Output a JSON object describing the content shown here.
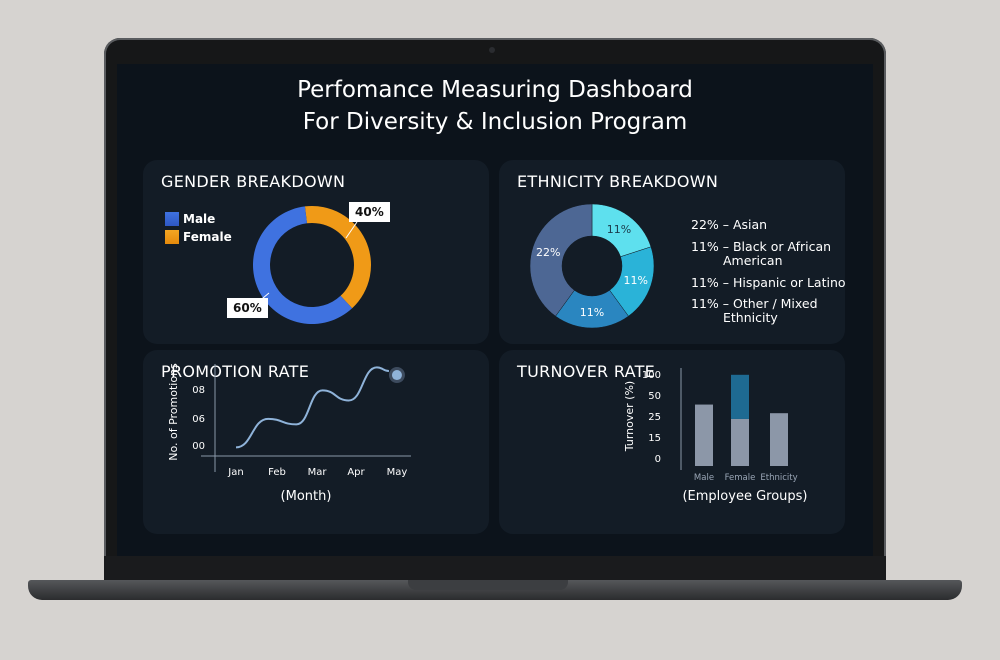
{
  "dashboard": {
    "title_line1": "Perfomance Measuring Dashboard",
    "title_line2": "For Diversity & Inclusion Program"
  },
  "chart_data": [
    {
      "id": "gender",
      "type": "pie",
      "variant": "donut",
      "title": "GENDER BREAKDOWN",
      "series": [
        {
          "name": "Male",
          "value": 60,
          "label": "60%",
          "color": "#3f72e0"
        },
        {
          "name": "Female",
          "value": 40,
          "label": "40%",
          "color": "#f09a17"
        }
      ],
      "legend_position": "left"
    },
    {
      "id": "ethnicity",
      "type": "pie",
      "variant": "donut",
      "title": "ETHNICITY BREAKDOWN",
      "series": [
        {
          "value": 11,
          "label": "11%",
          "color": "#5ee0ee"
        },
        {
          "value": 11,
          "label": "11%",
          "color": "#2ab3d8"
        },
        {
          "value": 11,
          "label": "11%",
          "color": "#2a86c0"
        },
        {
          "value": 22,
          "label": "22%",
          "color": "#4d6794"
        }
      ],
      "legend": [
        {
          "line1": "22% –  Asian",
          "line2": ""
        },
        {
          "line1": "11% –  Black or African",
          "line2": "American"
        },
        {
          "line1": "11% –  Hispanic or Latino",
          "line2": ""
        },
        {
          "line1": "11% –  Other / Mixed",
          "line2": "Ethnicity"
        }
      ]
    },
    {
      "id": "promotion",
      "type": "line",
      "title": "PROMOTION RATE",
      "categories": [
        "Jan",
        "Feb",
        "Mar",
        "Apr",
        "May"
      ],
      "x_label": "(Month)",
      "y_label": "No. of Promotions",
      "y_ticks": [
        "08",
        "06",
        "00"
      ],
      "curve_y": [
        0.5,
        3.6,
        3.0,
        6.7,
        5.6,
        9.2,
        8.8
      ],
      "curve_x": [
        0.0,
        0.8,
        1.5,
        2.15,
        2.8,
        3.5,
        3.8
      ],
      "ylim": [
        0,
        10
      ],
      "color": "#8fb3d9"
    },
    {
      "id": "turnover",
      "type": "bar",
      "title": "TURNOVER RATE",
      "categories": [
        "Male",
        "Female",
        "Ethnicity"
      ],
      "x_label": "(Employee Groups)",
      "y_label": "Turnover (%)",
      "y_ticks": [
        "100",
        "50",
        "25",
        "15",
        "0"
      ],
      "series": [
        {
          "values": [
            64,
            49,
            55
          ],
          "color": "#8c97a8"
        },
        {
          "values": [
            0,
            46,
            0
          ],
          "color": "#1e6a92"
        }
      ],
      "ylim": [
        0,
        100
      ]
    }
  ]
}
